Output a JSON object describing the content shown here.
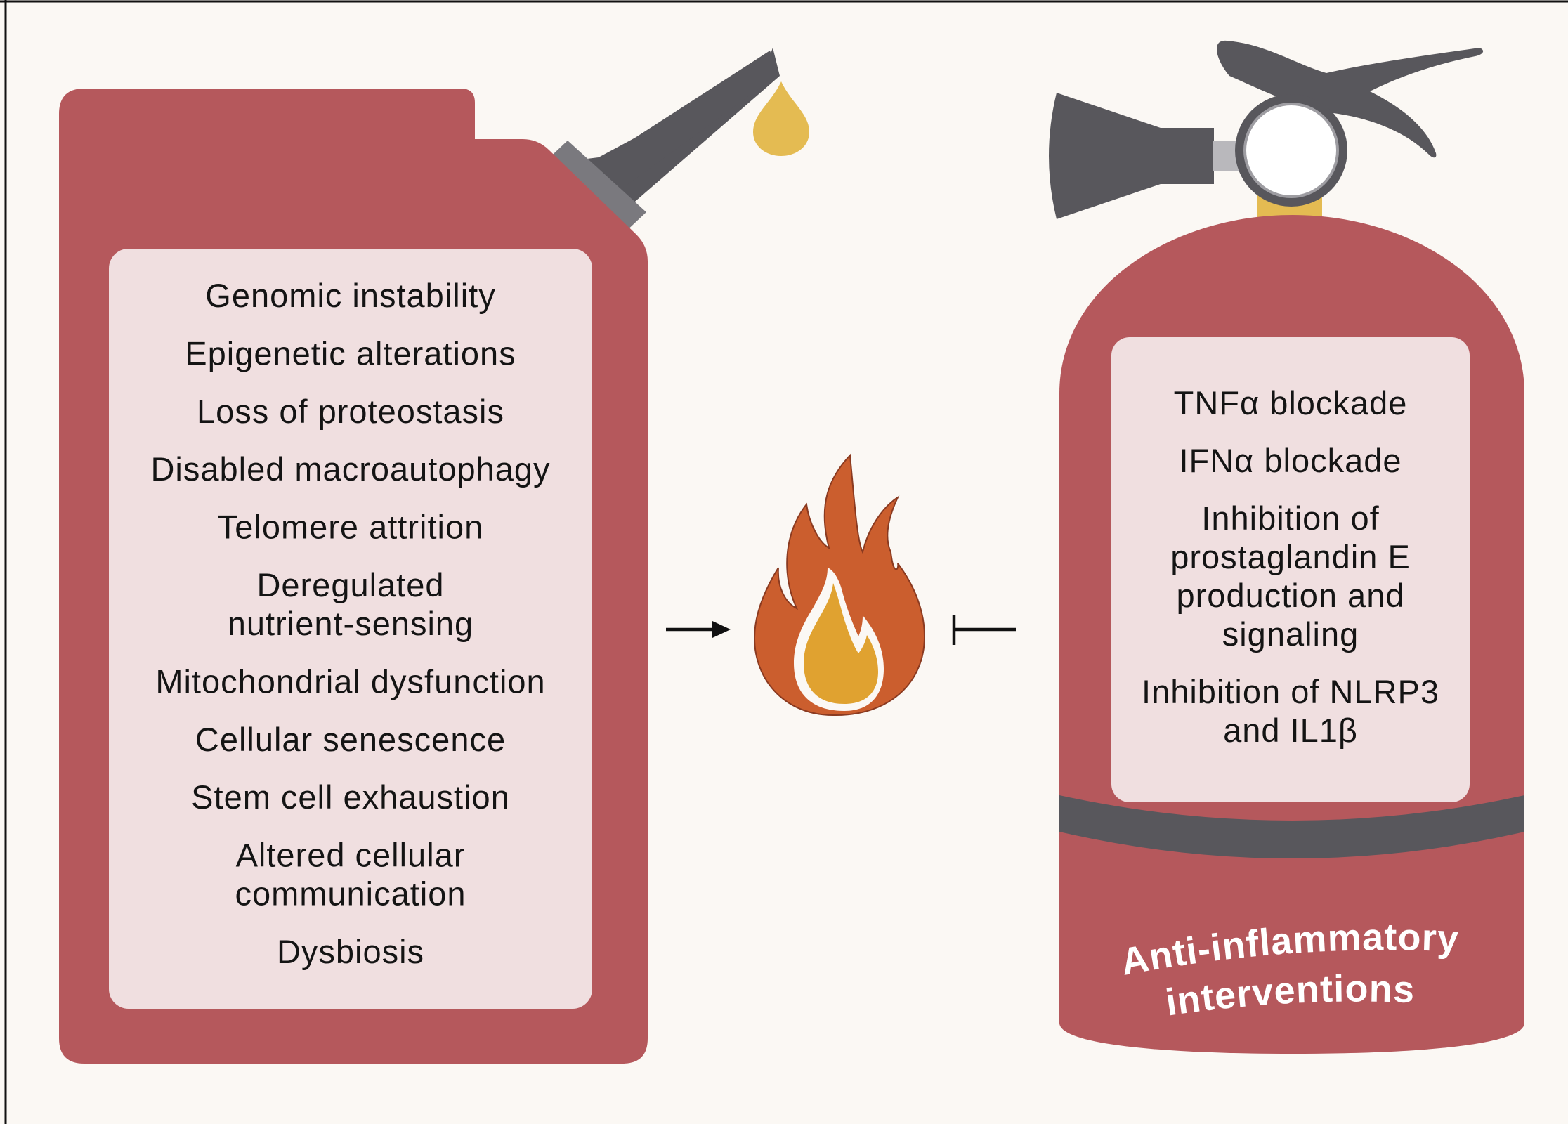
{
  "colors": {
    "background": "#fbf8f4",
    "container_red": "#b5585c",
    "panel_fill": "#f0dfe0",
    "nozzle_gray": "#58575c",
    "drop_gold": "#e4bb52",
    "flame_outer": "#cb5e2e",
    "flame_inner": "#e0a230"
  },
  "icons": {
    "fuel_can": "fuel-can-icon",
    "oil_drop": "oil-drop-icon",
    "fire": "fire-icon",
    "extinguisher": "fire-extinguisher-icon",
    "activation_arrow": "arrow-right-icon",
    "inhibition_arrow": "inhibition-tee-icon"
  },
  "fuel_can": {
    "hallmarks": [
      [
        "Genomic instability"
      ],
      [
        "Epigenetic alterations"
      ],
      [
        "Loss of proteostasis"
      ],
      [
        "Disabled macroautophagy"
      ],
      [
        "Telomere attrition"
      ],
      [
        "Deregulated",
        "nutrient-sensing"
      ],
      [
        "Mitochondrial dysfunction"
      ],
      [
        "Cellular senescence"
      ],
      [
        "Stem cell exhaustion"
      ],
      [
        "Altered cellular",
        "communication"
      ],
      [
        "Dysbiosis"
      ]
    ]
  },
  "extinguisher": {
    "interventions": [
      [
        "TNFα blockade"
      ],
      [
        "IFNα blockade"
      ],
      [
        "Inhibition of",
        "prostaglandin E",
        "production and",
        "signaling"
      ],
      [
        "Inhibition of NLRP3",
        "and IL1β"
      ]
    ],
    "label": [
      "Anti-inflammatory",
      "interventions"
    ]
  }
}
